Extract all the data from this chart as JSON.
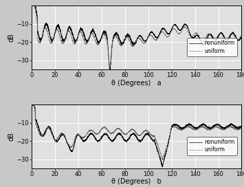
{
  "title_a": "a",
  "title_b": "b",
  "xlabel": "θ (Degrees)",
  "ylabel": "dB",
  "xlim": [
    0,
    180
  ],
  "ylim": [
    -35,
    0
  ],
  "yticks": [
    -30,
    -20,
    -10
  ],
  "xticks": [
    0,
    20,
    40,
    60,
    80,
    100,
    120,
    140,
    160,
    180
  ],
  "legend_nonuniform": "nonuniform",
  "legend_uniform": "uniform",
  "background_color": "#e0e0e0",
  "line_color_nonuniform": "#000000",
  "line_color_uniform": "#555555",
  "grid_color": "#ffffff",
  "fig_facecolor": "#c8c8c8"
}
